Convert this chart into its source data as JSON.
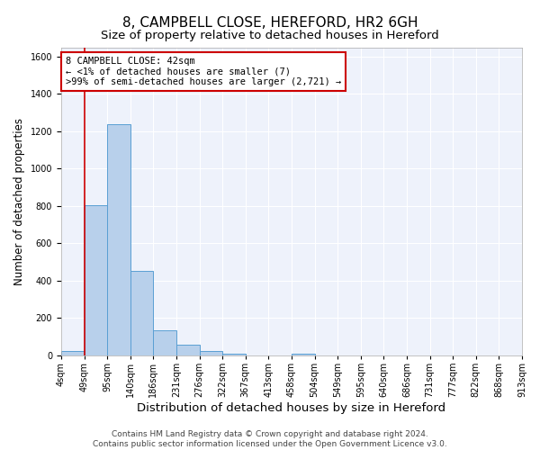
{
  "title": "8, CAMPBELL CLOSE, HEREFORD, HR2 6GH",
  "subtitle": "Size of property relative to detached houses in Hereford",
  "xlabel": "Distribution of detached houses by size in Hereford",
  "ylabel": "Number of detached properties",
  "footer_line1": "Contains HM Land Registry data © Crown copyright and database right 2024.",
  "footer_line2": "Contains public sector information licensed under the Open Government Licence v3.0.",
  "bin_labels": [
    "4sqm",
    "49sqm",
    "95sqm",
    "140sqm",
    "186sqm",
    "231sqm",
    "276sqm",
    "322sqm",
    "367sqm",
    "413sqm",
    "458sqm",
    "504sqm",
    "549sqm",
    "595sqm",
    "640sqm",
    "686sqm",
    "731sqm",
    "777sqm",
    "822sqm",
    "868sqm",
    "913sqm"
  ],
  "bar_heights": [
    25,
    805,
    1240,
    455,
    135,
    60,
    22,
    12,
    0,
    0,
    12,
    0,
    0,
    0,
    0,
    0,
    0,
    0,
    0,
    0
  ],
  "bar_color": "#b8d0eb",
  "bar_edge_color": "#5a9fd4",
  "property_line_index": 1,
  "property_line_color": "#cc0000",
  "annotation_text": "8 CAMPBELL CLOSE: 42sqm\n← <1% of detached houses are smaller (7)\n>99% of semi-detached houses are larger (2,721) →",
  "annotation_box_color": "white",
  "annotation_box_edge_color": "#cc0000",
  "ylim": [
    0,
    1650
  ],
  "yticks": [
    0,
    200,
    400,
    600,
    800,
    1000,
    1200,
    1400,
    1600
  ],
  "bg_color": "#eef2fb",
  "grid_color": "white",
  "title_fontsize": 11,
  "subtitle_fontsize": 9.5,
  "xlabel_fontsize": 9.5,
  "ylabel_fontsize": 8.5,
  "tick_fontsize": 7,
  "annotation_fontsize": 7.5,
  "footer_fontsize": 6.5
}
